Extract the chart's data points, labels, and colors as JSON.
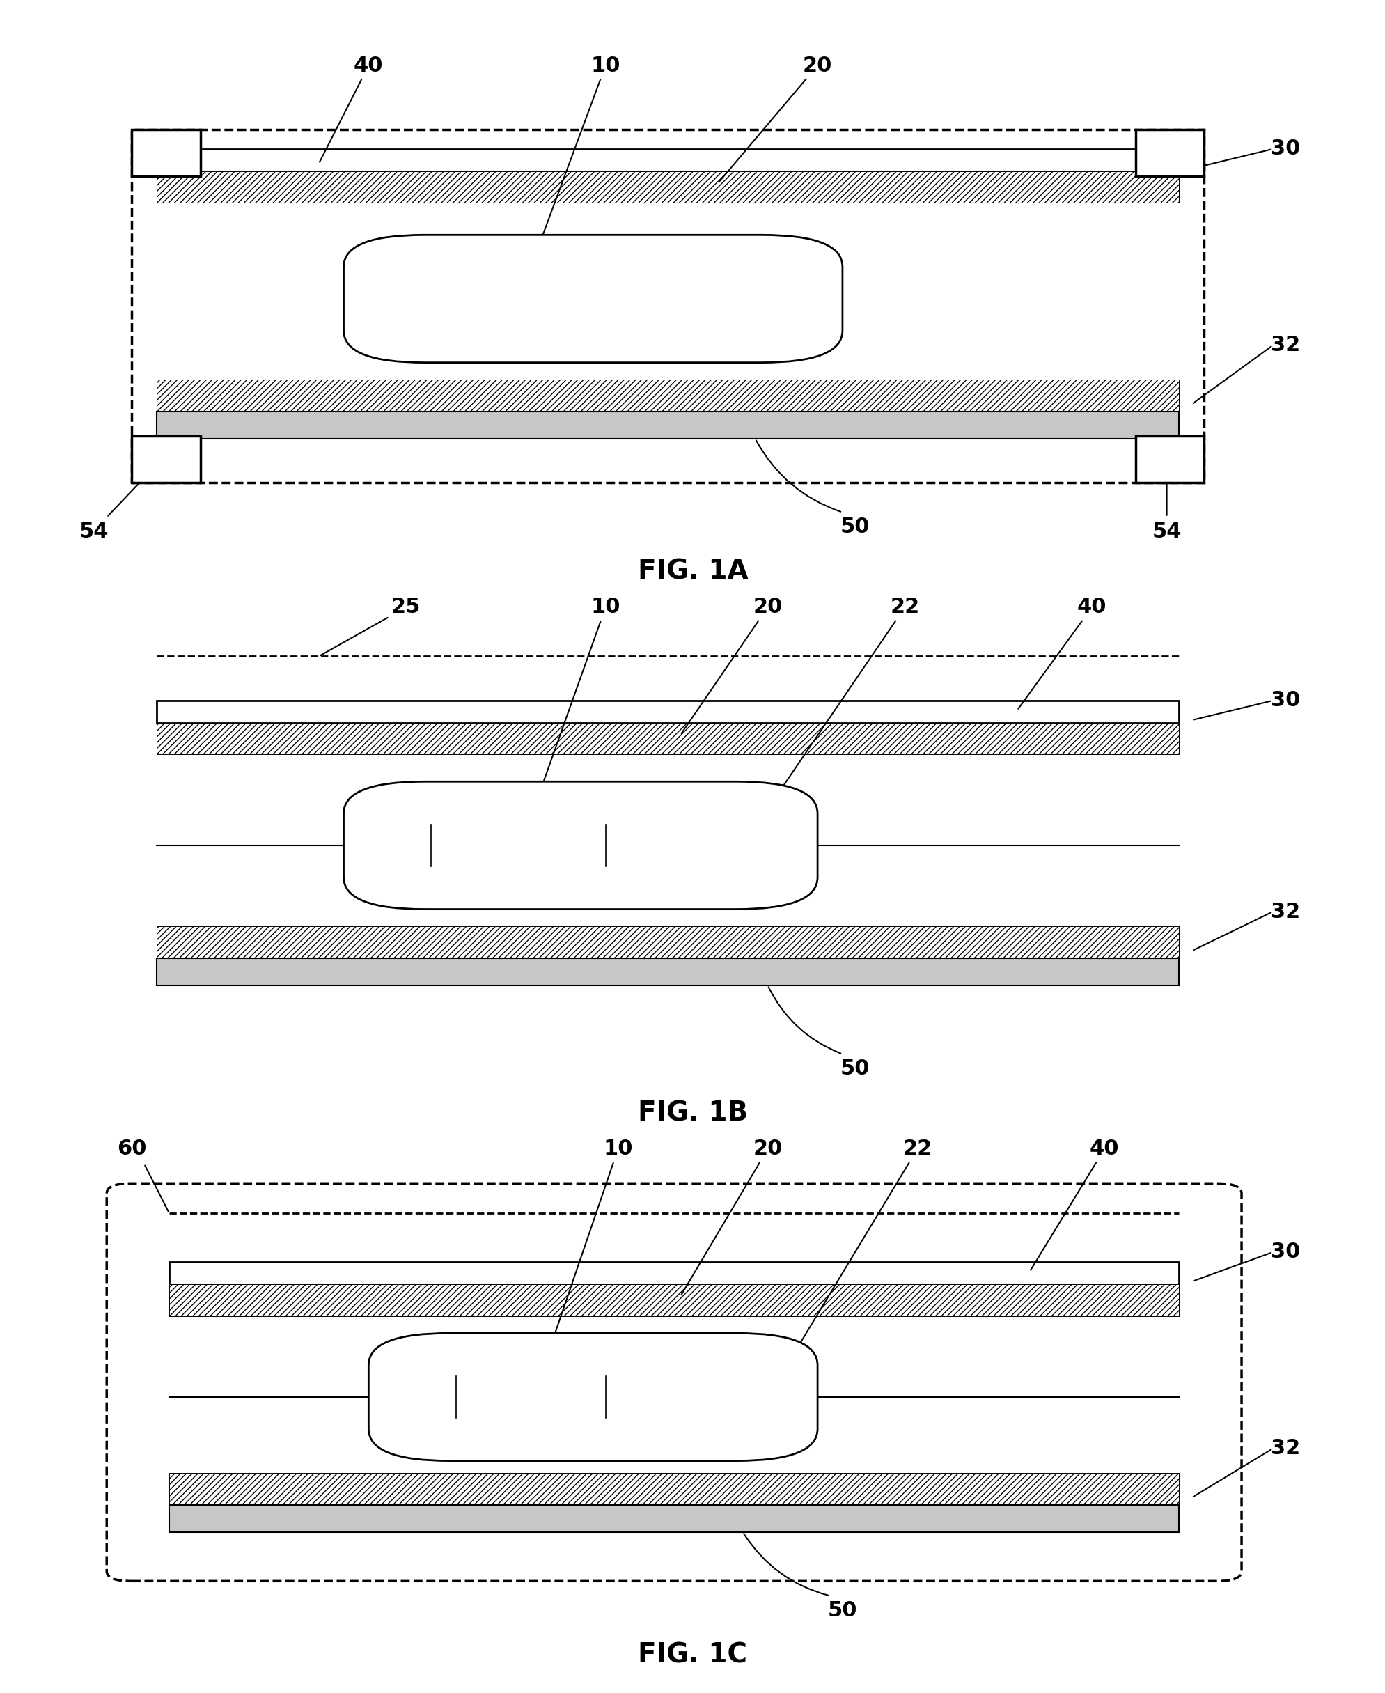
{
  "fig_title_1a": "FIG. 1A",
  "fig_title_1b": "FIG. 1B",
  "fig_title_1c": "FIG. 1C",
  "bg_color": "#ffffff",
  "line_color": "#000000",
  "label_fontsize": 22,
  "title_fontsize": 28,
  "lw": 2.0
}
